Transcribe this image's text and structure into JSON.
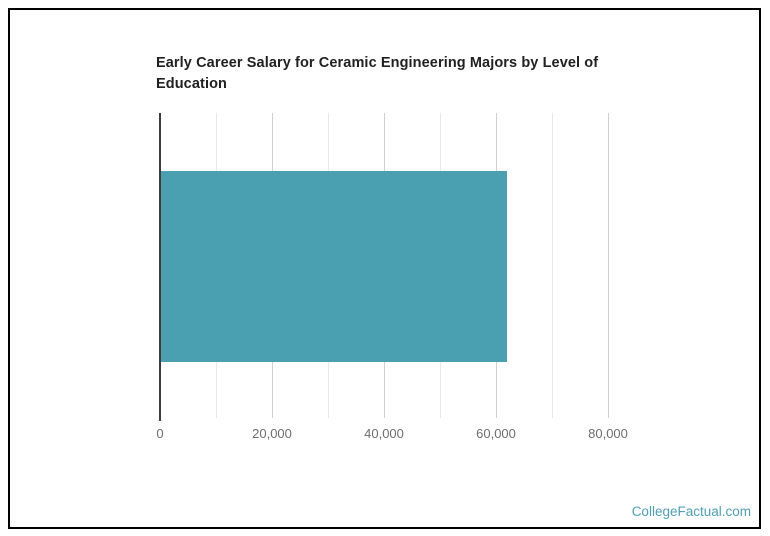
{
  "page": {
    "background": "#ffffff",
    "border_color": "#000000"
  },
  "chart_data": {
    "type": "bar",
    "orientation": "horizontal",
    "title": "Early Career Salary for Ceramic Engineering Majors by Level of Education",
    "title_lines": [
      "Early Career Salary for Ceramic Engineering Majors by Level of",
      "Education"
    ],
    "title_color": "#212121",
    "categories": [
      ""
    ],
    "values": [
      61800
    ],
    "xlabel": "",
    "ylabel": "",
    "xlim": [
      0,
      90000
    ],
    "xticks": [
      0,
      20000,
      40000,
      60000,
      80000
    ],
    "xtick_labels": [
      "0",
      "20,000",
      "40,000",
      "60,000",
      "80,000"
    ],
    "minor_gridline_interval": 10000,
    "grid": true,
    "legend": "none",
    "bar_color": "#4a9fb0",
    "axis_color": "#3d3d3d",
    "major_gridline_color": "#cfcfcf",
    "minor_gridline_color": "#e8e8e8",
    "tick_label_color": "#6e6e6e"
  },
  "watermark": {
    "text": "CollegeFactual.com",
    "color": "#4e9fb5"
  }
}
